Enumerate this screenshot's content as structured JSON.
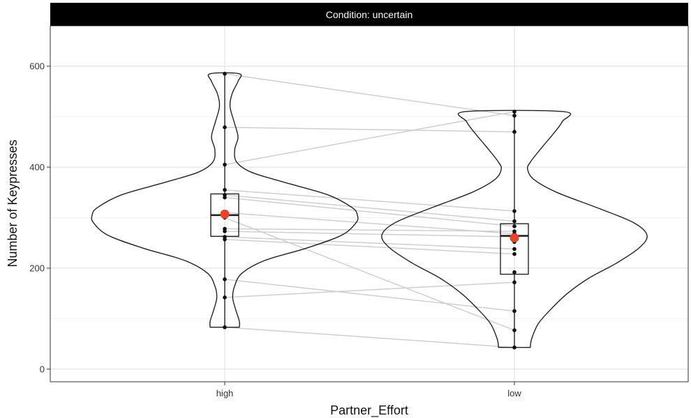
{
  "chart_data": {
    "type": "violin",
    "facet": {
      "label": "Condition: uncertain"
    },
    "xlabel": "Partner_Effort",
    "ylabel": "Number of Keypresses",
    "categories": [
      "high",
      "low"
    ],
    "ylim": [
      -25,
      680
    ],
    "yticks": [
      0,
      200,
      400,
      600
    ],
    "grid": true,
    "colors": {
      "background": "#ffffff",
      "strip": "#000000",
      "grid_major": "#dcdcdc",
      "grid_minor": "#efefef",
      "violin": "#222222",
      "box": "#222222",
      "point": "#111111",
      "mean": "#e8442c",
      "pair_line": "#cfcfcf"
    },
    "groups": [
      {
        "category": "high",
        "box": {
          "q1": 263,
          "median": 305,
          "q3": 347,
          "whisker_low": 83,
          "whisker_high": 585
        },
        "mean": 307,
        "points": [
          585,
          479,
          405,
          355,
          345,
          340,
          310,
          300,
          278,
          273,
          262,
          257,
          178,
          142,
          83
        ],
        "violin_profile": [
          [
            83,
            0.11
          ],
          [
            95,
            0.11
          ],
          [
            120,
            0.08
          ],
          [
            142,
            0.06
          ],
          [
            165,
            0.075
          ],
          [
            190,
            0.13
          ],
          [
            215,
            0.3
          ],
          [
            240,
            0.62
          ],
          [
            265,
            0.88
          ],
          [
            290,
            0.99
          ],
          [
            305,
            1.0
          ],
          [
            320,
            0.96
          ],
          [
            345,
            0.78
          ],
          [
            370,
            0.45
          ],
          [
            390,
            0.2
          ],
          [
            410,
            0.09
          ],
          [
            435,
            0.075
          ],
          [
            460,
            0.1
          ],
          [
            490,
            0.07
          ],
          [
            520,
            0.04
          ],
          [
            545,
            0.055
          ],
          [
            570,
            0.1
          ],
          [
            585,
            0.11
          ]
        ]
      },
      {
        "category": "low",
        "box": {
          "q1": 188,
          "median": 264,
          "q3": 288,
          "whisker_low": 43,
          "whisker_high": 510
        },
        "mean": 260,
        "points": [
          510,
          502,
          470,
          313,
          293,
          283,
          273,
          268,
          262,
          252,
          238,
          228,
          192,
          172,
          115,
          77,
          43
        ],
        "violin_profile": [
          [
            43,
            0.12
          ],
          [
            60,
            0.13
          ],
          [
            90,
            0.18
          ],
          [
            120,
            0.28
          ],
          [
            150,
            0.4
          ],
          [
            180,
            0.56
          ],
          [
            210,
            0.77
          ],
          [
            240,
            0.94
          ],
          [
            265,
            1.0
          ],
          [
            290,
            0.9
          ],
          [
            320,
            0.62
          ],
          [
            350,
            0.32
          ],
          [
            375,
            0.15
          ],
          [
            395,
            0.1
          ],
          [
            410,
            0.12
          ],
          [
            440,
            0.21
          ],
          [
            465,
            0.29
          ],
          [
            490,
            0.36
          ],
          [
            510,
            0.37
          ]
        ]
      }
    ],
    "pairs": [
      [
        585,
        502
      ],
      [
        479,
        470
      ],
      [
        405,
        510
      ],
      [
        355,
        313
      ],
      [
        345,
        293
      ],
      [
        340,
        283
      ],
      [
        310,
        268
      ],
      [
        300,
        77
      ],
      [
        278,
        273
      ],
      [
        273,
        262
      ],
      [
        262,
        238
      ],
      [
        257,
        228
      ],
      [
        178,
        115
      ],
      [
        142,
        172
      ],
      [
        83,
        43
      ]
    ]
  }
}
